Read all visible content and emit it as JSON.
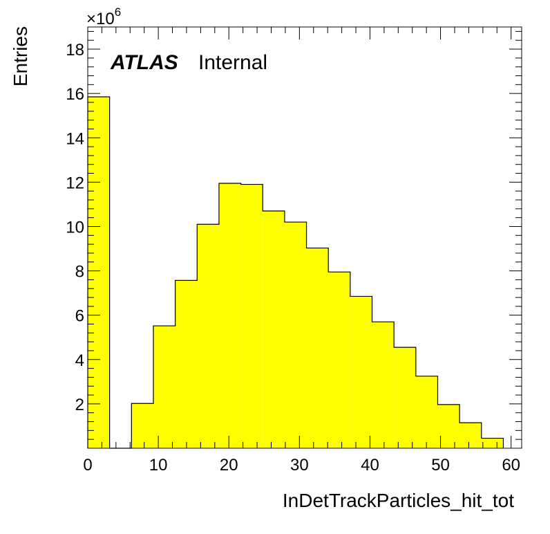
{
  "chart_data": {
    "type": "bar",
    "histogram": true,
    "bin_edges": [
      0,
      3.1,
      6.2,
      9.3,
      12.4,
      15.5,
      18.6,
      21.7,
      24.8,
      27.9,
      31.0,
      34.1,
      37.2,
      40.3,
      43.4,
      46.5,
      49.6,
      52.7,
      55.8,
      58.9
    ],
    "values": [
      15.85,
      0,
      2.02,
      5.52,
      7.57,
      10.1,
      11.95,
      11.9,
      10.7,
      10.2,
      9.03,
      7.95,
      6.85,
      5.7,
      4.55,
      3.25,
      1.97,
      1.15,
      0.45
    ],
    "xlabel": "InDetTrackParticles_hit_tot",
    "ylabel": "Entries",
    "y_multiplier": "×10",
    "y_multiplier_exp": "6",
    "xlim": [
      0,
      61.5
    ],
    "ylim": [
      0,
      19
    ],
    "x_ticks": [
      0,
      10,
      20,
      30,
      40,
      50,
      60
    ],
    "y_ticks": [
      2,
      4,
      6,
      8,
      10,
      12,
      14,
      16,
      18
    ],
    "fill_color": "#ffff00",
    "line_color": "#000000",
    "grid": false,
    "label_bold": "ATLAS",
    "label_text": "Internal"
  }
}
